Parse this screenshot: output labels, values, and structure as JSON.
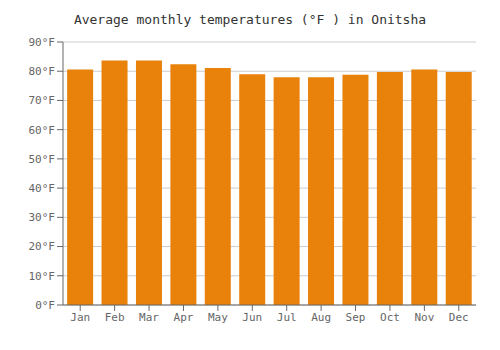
{
  "chart_data": {
    "type": "bar",
    "title": "Average monthly temperatures (°F ) in Onitsha",
    "categories": [
      "Jan",
      "Feb",
      "Mar",
      "Apr",
      "May",
      "Jun",
      "Jul",
      "Aug",
      "Sep",
      "Oct",
      "Nov",
      "Dec"
    ],
    "values": [
      80.6,
      83.7,
      83.7,
      82.4,
      81.1,
      79.0,
      77.9,
      77.9,
      78.8,
      79.7,
      80.6,
      79.7
    ],
    "color": "#E8820A",
    "ylim": [
      0,
      90
    ],
    "yticks": [
      {
        "value": 0,
        "label": "0°F"
      },
      {
        "value": 10,
        "label": "10°F"
      },
      {
        "value": 20,
        "label": "20°F"
      },
      {
        "value": 30,
        "label": "30°F"
      },
      {
        "value": 40,
        "label": "40°F"
      },
      {
        "value": 50,
        "label": "50°F"
      },
      {
        "value": 60,
        "label": "60°F"
      },
      {
        "value": 70,
        "label": "70°F"
      },
      {
        "value": 80,
        "label": "80°F"
      },
      {
        "value": 90,
        "label": "90°F"
      }
    ],
    "grid": true
  }
}
